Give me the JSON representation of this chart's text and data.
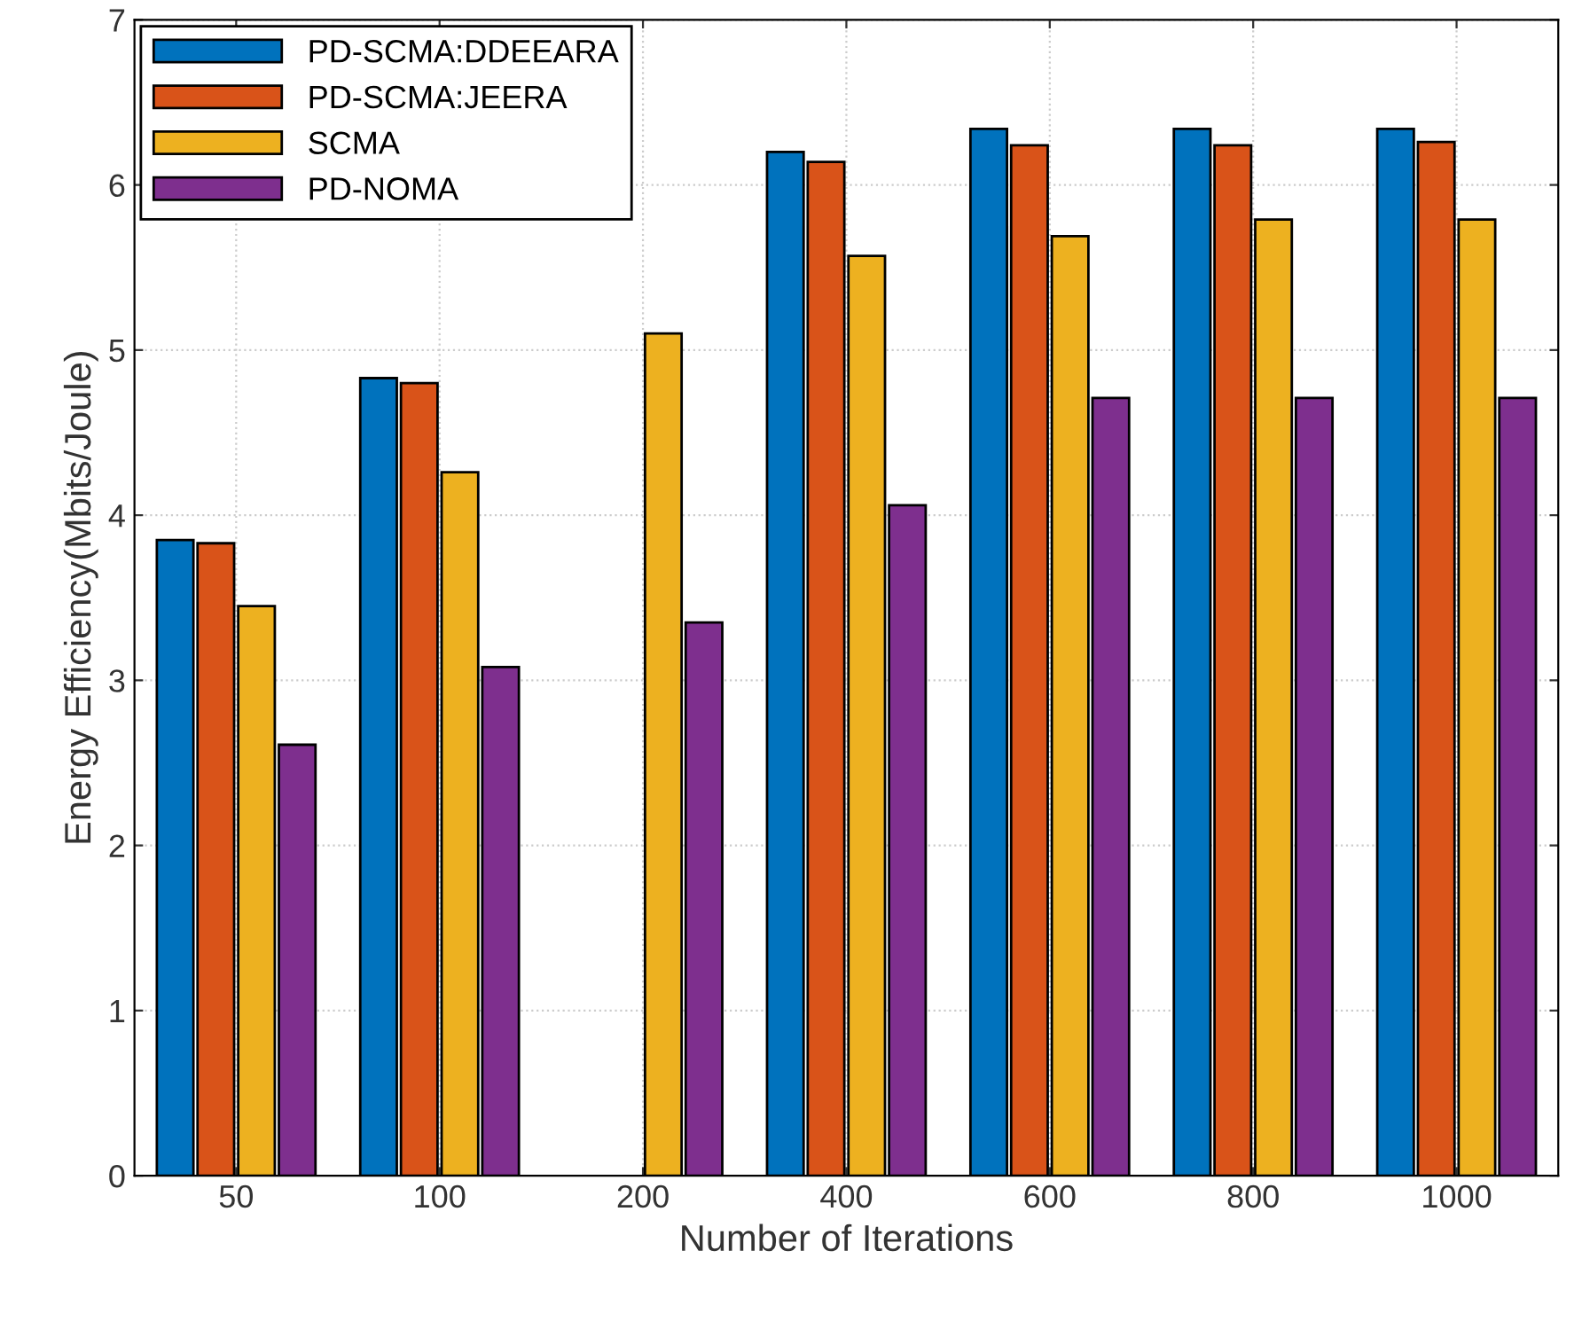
{
  "chart_data": {
    "type": "bar",
    "xlabel": "Number of Iterations",
    "ylabel": "Energy Efficiency(Mbits/Joule)",
    "categories": [
      "50",
      "100",
      "200",
      "400",
      "600",
      "800",
      "1000"
    ],
    "series": [
      {
        "name": "PD-SCMA:DDEEARA",
        "color": "#0072bd",
        "values": [
          3.85,
          4.83,
          null,
          6.2,
          6.34,
          6.34,
          6.34
        ]
      },
      {
        "name": "PD-SCMA:JEERA",
        "color": "#d95319",
        "values": [
          3.83,
          4.8,
          null,
          6.14,
          6.24,
          6.24,
          6.26
        ]
      },
      {
        "name": "SCMA",
        "color": "#edb120",
        "values": [
          3.45,
          4.26,
          5.1,
          5.57,
          5.69,
          5.79,
          5.79
        ]
      },
      {
        "name": "PD-NOMA",
        "color": "#7e2f8e",
        "values": [
          2.61,
          3.08,
          3.35,
          4.06,
          4.71,
          4.71,
          4.71
        ]
      }
    ],
    "ylim": [
      0,
      7
    ],
    "yticks": [
      0,
      1,
      2,
      3,
      4,
      5,
      6,
      7
    ],
    "grid": true,
    "legend": "top left"
  }
}
